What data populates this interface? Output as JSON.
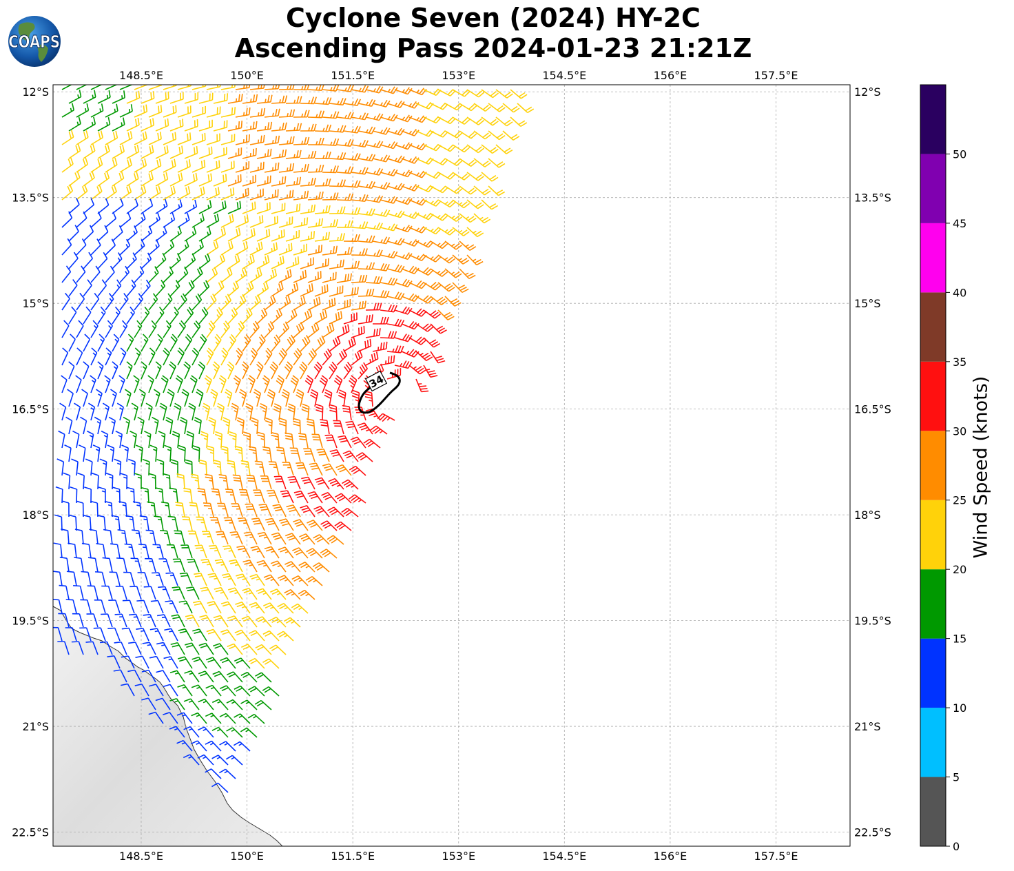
{
  "title": {
    "line1": "Cyclone Seven (2024) HY-2C",
    "line2": "Ascending Pass 2024-01-23 21:21Z"
  },
  "logo": {
    "text": "COAPS",
    "icon": "coaps-globe-logo"
  },
  "map": {
    "lon_range": [
      147.25,
      158.55
    ],
    "lat_range": [
      -22.7,
      -11.9
    ],
    "lon_ticks": [
      "148.5°E",
      "150°E",
      "151.5°E",
      "153°E",
      "154.5°E",
      "156°E",
      "157.5°E"
    ],
    "lat_ticks": [
      "12°S",
      "13.5°S",
      "15°S",
      "16.5°S",
      "18°S",
      "19.5°S",
      "21°S",
      "22.5°S"
    ],
    "grid": true,
    "contour_label": "34",
    "land": "Queensland coast (grey shaded, bottom-left)"
  },
  "colorbar": {
    "label": "Wind Speed (knots)",
    "tick_labels": [
      "0",
      "5",
      "10",
      "15",
      "20",
      "25",
      "30",
      "35",
      "40",
      "45",
      "50"
    ],
    "bins": [
      {
        "from": 0,
        "to": 5,
        "color": "#555555"
      },
      {
        "from": 5,
        "to": 10,
        "color": "#00bfff"
      },
      {
        "from": 10,
        "to": 15,
        "color": "#0033ff"
      },
      {
        "from": 15,
        "to": 20,
        "color": "#009900"
      },
      {
        "from": 20,
        "to": 25,
        "color": "#ffd20a"
      },
      {
        "from": 25,
        "to": 30,
        "color": "#ff8c00"
      },
      {
        "from": 30,
        "to": 35,
        "color": "#ff1010"
      },
      {
        "from": 35,
        "to": 40,
        "color": "#7f3a28"
      },
      {
        "from": 40,
        "to": 45,
        "color": "#ff00ee"
      },
      {
        "from": 45,
        "to": 50,
        "color": "#8000b0"
      },
      {
        "from": 50,
        "to": 55,
        "color": "#2a0060"
      }
    ]
  }
}
